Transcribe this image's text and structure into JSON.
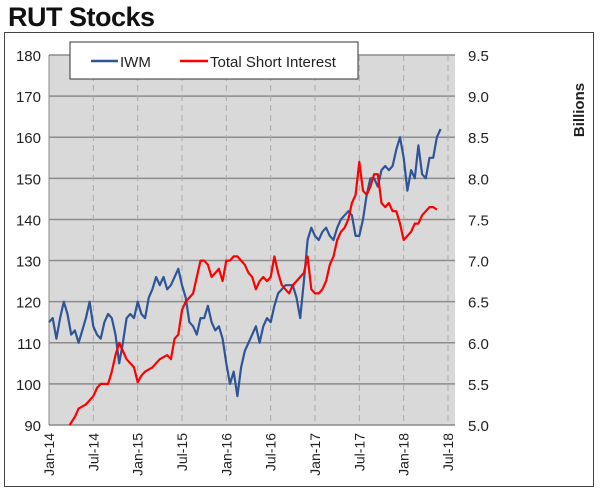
{
  "title": "RUT Stocks",
  "chart_data": {
    "type": "line",
    "title": "RUT Stocks",
    "x_unit": "months since Jan-14",
    "x_ticks": [
      "Jan-14",
      "Jul-14",
      "Jan-15",
      "Jul-15",
      "Jan-16",
      "Jul-16",
      "Jan-17",
      "Jul-17",
      "Jan-18",
      "Jul-18"
    ],
    "xlim": [
      0,
      55
    ],
    "y_left": {
      "label": "",
      "ylim": [
        90,
        180
      ],
      "ticks": [
        "90",
        "100",
        "110",
        "120",
        "130",
        "140",
        "150",
        "160",
        "170",
        "180"
      ]
    },
    "y_right": {
      "label": "Billions",
      "ylim": [
        5.0,
        9.5
      ],
      "ticks": [
        "5.0",
        "5.5",
        "6.0",
        "6.5",
        "7.0",
        "7.5",
        "8.0",
        "8.5",
        "9.0",
        "9.5"
      ]
    },
    "grid": true,
    "legend": "top",
    "series": [
      {
        "name": "IWM",
        "axis": "left",
        "color": "#2f5597",
        "points": [
          [
            0,
            115
          ],
          [
            0.5,
            116
          ],
          [
            1,
            111
          ],
          [
            1.5,
            116
          ],
          [
            2,
            120
          ],
          [
            2.5,
            117
          ],
          [
            3,
            112
          ],
          [
            3.5,
            113
          ],
          [
            4,
            110
          ],
          [
            4.5,
            113
          ],
          [
            5,
            116
          ],
          [
            5.5,
            120
          ],
          [
            6,
            114
          ],
          [
            6.5,
            112
          ],
          [
            7,
            111
          ],
          [
            7.5,
            115
          ],
          [
            8,
            117
          ],
          [
            8.5,
            116
          ],
          [
            9,
            112
          ],
          [
            9.5,
            105
          ],
          [
            10,
            110
          ],
          [
            10.5,
            116
          ],
          [
            11,
            117
          ],
          [
            11.5,
            116
          ],
          [
            12,
            120
          ],
          [
            12.5,
            117
          ],
          [
            13,
            116
          ],
          [
            13.5,
            121
          ],
          [
            14,
            123
          ],
          [
            14.5,
            126
          ],
          [
            15,
            124
          ],
          [
            15.5,
            126
          ],
          [
            16,
            123
          ],
          [
            16.5,
            124
          ],
          [
            17,
            126
          ],
          [
            17.5,
            128
          ],
          [
            18,
            124
          ],
          [
            18.5,
            121
          ],
          [
            19,
            115
          ],
          [
            19.5,
            114
          ],
          [
            20,
            112
          ],
          [
            20.5,
            116
          ],
          [
            21,
            116
          ],
          [
            21.5,
            119
          ],
          [
            22,
            115
          ],
          [
            22.5,
            113
          ],
          [
            23,
            114
          ],
          [
            23.5,
            111
          ],
          [
            24,
            105
          ],
          [
            24.5,
            100
          ],
          [
            25,
            103
          ],
          [
            25.5,
            97
          ],
          [
            26,
            104
          ],
          [
            26.5,
            108
          ],
          [
            27,
            110
          ],
          [
            27.5,
            112
          ],
          [
            28,
            114
          ],
          [
            28.5,
            110
          ],
          [
            29,
            114
          ],
          [
            29.5,
            116
          ],
          [
            30,
            115
          ],
          [
            30.5,
            119
          ],
          [
            31,
            122
          ],
          [
            31.5,
            123
          ],
          [
            32,
            124
          ],
          [
            32.5,
            124
          ],
          [
            33,
            124
          ],
          [
            33.5,
            121
          ],
          [
            34,
            116
          ],
          [
            34.5,
            125
          ],
          [
            35,
            135
          ],
          [
            35.5,
            138
          ],
          [
            36,
            136
          ],
          [
            36.5,
            135
          ],
          [
            37,
            137
          ],
          [
            37.5,
            138
          ],
          [
            38,
            136
          ],
          [
            38.5,
            135
          ],
          [
            39,
            138
          ],
          [
            39.5,
            140
          ],
          [
            40,
            141
          ],
          [
            40.5,
            142
          ],
          [
            41,
            141
          ],
          [
            41.5,
            136
          ],
          [
            42,
            136
          ],
          [
            42.5,
            140
          ],
          [
            43,
            146
          ],
          [
            43.5,
            150
          ],
          [
            44,
            150
          ],
          [
            44.5,
            148
          ],
          [
            45,
            152
          ],
          [
            45.5,
            153
          ],
          [
            46,
            152
          ],
          [
            46.5,
            153
          ],
          [
            47,
            157
          ],
          [
            47.5,
            160
          ],
          [
            48,
            155
          ],
          [
            48.5,
            147
          ],
          [
            49,
            152
          ],
          [
            49.5,
            150
          ],
          [
            50,
            158
          ],
          [
            50.5,
            151
          ],
          [
            51,
            150
          ],
          [
            51.5,
            155
          ],
          [
            52,
            155
          ],
          [
            52.5,
            160
          ],
          [
            53,
            162
          ]
        ]
      },
      {
        "name": "Total Short Interest",
        "axis": "right",
        "color": "#ff0000",
        "points": [
          [
            2.8,
            5.0
          ],
          [
            3.5,
            5.1
          ],
          [
            4,
            5.2
          ],
          [
            5,
            5.25
          ],
          [
            5.5,
            5.3
          ],
          [
            6,
            5.35
          ],
          [
            6.5,
            5.45
          ],
          [
            7,
            5.5
          ],
          [
            8,
            5.5
          ],
          [
            8.5,
            5.65
          ],
          [
            9,
            5.85
          ],
          [
            9.5,
            6.0
          ],
          [
            10,
            5.9
          ],
          [
            10.5,
            5.8
          ],
          [
            11,
            5.75
          ],
          [
            11.5,
            5.7
          ],
          [
            12,
            5.52
          ],
          [
            12.5,
            5.6
          ],
          [
            13,
            5.65
          ],
          [
            14,
            5.7
          ],
          [
            15,
            5.8
          ],
          [
            16,
            5.85
          ],
          [
            16.5,
            5.8
          ],
          [
            17,
            6.05
          ],
          [
            17.5,
            6.1
          ],
          [
            18,
            6.4
          ],
          [
            18.5,
            6.5
          ],
          [
            19,
            6.55
          ],
          [
            19.5,
            6.6
          ],
          [
            20,
            6.8
          ],
          [
            20.5,
            7.0
          ],
          [
            21,
            7.0
          ],
          [
            21.5,
            6.95
          ],
          [
            22,
            6.8
          ],
          [
            22.5,
            6.85
          ],
          [
            23,
            6.9
          ],
          [
            23.5,
            6.75
          ],
          [
            24,
            7.0
          ],
          [
            24.5,
            7.0
          ],
          [
            25,
            7.05
          ],
          [
            25.5,
            7.05
          ],
          [
            26,
            7.0
          ],
          [
            26.5,
            6.95
          ],
          [
            27,
            6.85
          ],
          [
            27.5,
            6.8
          ],
          [
            28,
            6.65
          ],
          [
            28.5,
            6.75
          ],
          [
            29,
            6.8
          ],
          [
            29.5,
            6.75
          ],
          [
            30,
            6.8
          ],
          [
            30.5,
            7.05
          ],
          [
            31,
            6.85
          ],
          [
            31.5,
            6.7
          ],
          [
            32,
            6.65
          ],
          [
            32.5,
            6.6
          ],
          [
            33,
            6.7
          ],
          [
            33.5,
            6.75
          ],
          [
            34,
            6.8
          ],
          [
            34.5,
            6.85
          ],
          [
            35,
            7.05
          ],
          [
            35.5,
            6.65
          ],
          [
            36,
            6.6
          ],
          [
            36.5,
            6.6
          ],
          [
            37,
            6.65
          ],
          [
            37.5,
            6.75
          ],
          [
            38,
            6.95
          ],
          [
            38.5,
            7.05
          ],
          [
            39,
            7.25
          ],
          [
            39.5,
            7.35
          ],
          [
            40,
            7.4
          ],
          [
            40.5,
            7.5
          ],
          [
            41,
            7.7
          ],
          [
            41.5,
            7.8
          ],
          [
            42,
            8.2
          ],
          [
            42.5,
            7.85
          ],
          [
            43,
            7.8
          ],
          [
            43.5,
            7.9
          ],
          [
            44,
            8.05
          ],
          [
            44.5,
            8.05
          ],
          [
            45,
            7.7
          ],
          [
            45.5,
            7.65
          ],
          [
            46,
            7.7
          ],
          [
            46.5,
            7.6
          ],
          [
            47,
            7.6
          ],
          [
            47.5,
            7.45
          ],
          [
            48,
            7.25
          ],
          [
            48.5,
            7.3
          ],
          [
            49,
            7.35
          ],
          [
            49.5,
            7.45
          ],
          [
            50,
            7.45
          ],
          [
            50.5,
            7.55
          ],
          [
            51,
            7.6
          ],
          [
            51.5,
            7.65
          ],
          [
            52,
            7.65
          ],
          [
            52.5,
            7.62
          ]
        ]
      }
    ]
  }
}
